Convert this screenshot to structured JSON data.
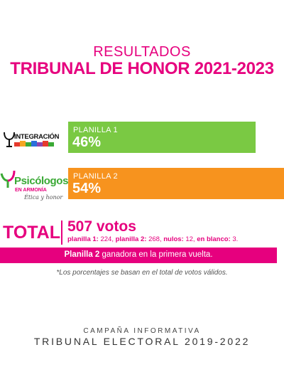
{
  "header": {
    "title_top": "RESULTADOS",
    "title_main": "TRIBUNAL DE HONOR 2021-2023"
  },
  "logos": {
    "planilla1": {
      "text": "INTEGRACIÓN",
      "colors": [
        "#e63a2e",
        "#f5a623",
        "#3aa935",
        "#2a6fdb",
        "#8e44ad"
      ]
    },
    "planilla2": {
      "name": "Psicólogos",
      "sub": "EN ARMONÍA",
      "tagline": "Ética y honor"
    }
  },
  "colors": {
    "accent": "#e6007e",
    "planilla1": "#7ac943",
    "planilla2": "#f7931e"
  },
  "chart_data": {
    "type": "bar",
    "orientation": "horizontal",
    "categories": [
      "PLANILLA 1",
      "PLANILLA 2"
    ],
    "values": [
      46,
      54
    ],
    "value_labels": [
      "46%",
      "54%"
    ],
    "unit": "%"
  },
  "summary": {
    "total_label": "TOTAL",
    "votes": "507 votos",
    "breakdown": [
      {
        "label": "planilla 1:",
        "value": " 224, "
      },
      {
        "label": "planilla 2:",
        "value": " 268, "
      },
      {
        "label": "nulos:",
        "value": " 12, "
      },
      {
        "label": "en blanco:",
        "value": " 3."
      }
    ]
  },
  "winner": {
    "bold": "Planilla 2",
    "rest": " ganadora en la primera vuelta."
  },
  "footnote": "*Los porcentajes se basan en el total de votos válidos.",
  "footer": {
    "campaign": "CAMPAÑA INFORMATIVA",
    "tribunal": "TRIBUNAL ELECTORAL 2019-2022"
  }
}
